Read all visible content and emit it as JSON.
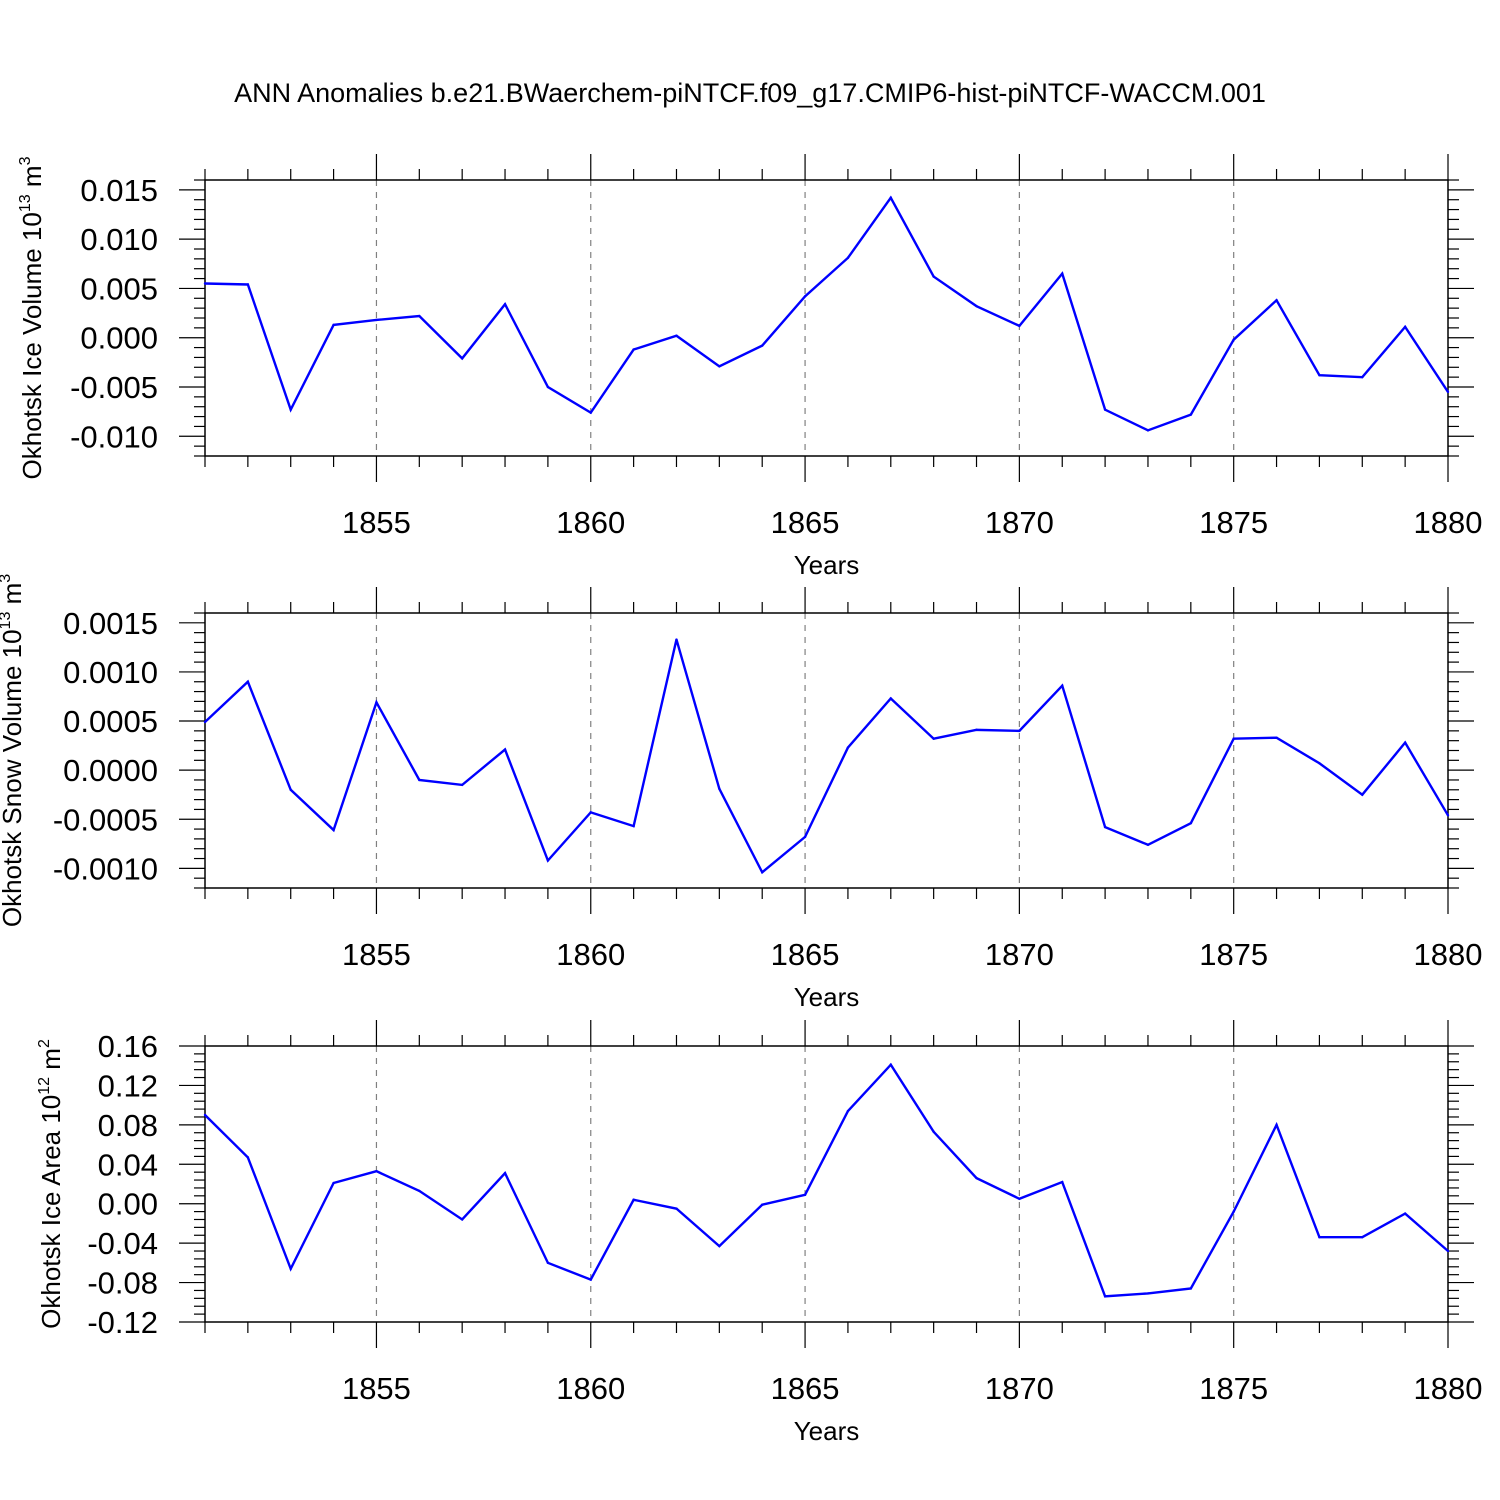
{
  "title": "ANN Anomalies b.e21.BWaerchem-piNTCF.f09_g17.CMIP6-hist-piNTCF-WACCM.001",
  "colors": {
    "line": "#0000ff",
    "axis": "#000000",
    "grid": "#808080"
  },
  "chart_data": [
    {
      "type": "line",
      "ylabel_main": "Okhotsk Ice Volume 10",
      "ylabel_exp": "13",
      "ylabel_unit": "m",
      "ylabel_unit_exp": "3",
      "xlabel": "Years",
      "xlim": [
        1851,
        1880
      ],
      "ylim": [
        -0.012,
        0.016
      ],
      "yticks": [
        -0.01,
        -0.005,
        0.0,
        0.005,
        0.01,
        0.015
      ],
      "ytick_labels": [
        "-0.010",
        "-0.005",
        "0.000",
        "0.005",
        "0.010",
        "0.015"
      ],
      "xticks": [
        1855,
        1860,
        1865,
        1870,
        1875,
        1880
      ],
      "xtick_labels": [
        "1855",
        "1860",
        "1865",
        "1870",
        "1875",
        "1880"
      ],
      "x": [
        1851,
        1852,
        1853,
        1854,
        1855,
        1856,
        1857,
        1858,
        1859,
        1860,
        1861,
        1862,
        1863,
        1864,
        1865,
        1866,
        1867,
        1868,
        1869,
        1870,
        1871,
        1872,
        1873,
        1874,
        1875,
        1876,
        1877,
        1878,
        1879,
        1880
      ],
      "y": [
        0.0055,
        0.0054,
        -0.0073,
        0.0013,
        0.0018,
        0.0022,
        -0.0021,
        0.0034,
        -0.005,
        -0.0076,
        -0.0012,
        0.0002,
        -0.0029,
        -0.0008,
        0.0042,
        0.0081,
        0.0142,
        0.0062,
        0.0032,
        0.0012,
        0.0065,
        -0.0073,
        -0.0094,
        -0.0078,
        -0.0002,
        0.0038,
        -0.0038,
        -0.004,
        0.0011,
        -0.0055
      ]
    },
    {
      "type": "line",
      "ylabel_main": "Okhotsk Snow Volume 10",
      "ylabel_exp": "13",
      "ylabel_unit": "m",
      "ylabel_unit_exp": "3",
      "xlabel": "Years",
      "xlim": [
        1851,
        1880
      ],
      "ylim": [
        -0.0012,
        0.0016
      ],
      "yticks": [
        -0.001,
        -0.0005,
        0.0,
        0.0005,
        0.001,
        0.0015
      ],
      "ytick_labels": [
        "-0.0010",
        "-0.0005",
        "0.0000",
        "0.0005",
        "0.0010",
        "0.0015"
      ],
      "xticks": [
        1855,
        1860,
        1865,
        1870,
        1875,
        1880
      ],
      "xtick_labels": [
        "1855",
        "1860",
        "1865",
        "1870",
        "1875",
        "1880"
      ],
      "x": [
        1851,
        1852,
        1853,
        1854,
        1855,
        1856,
        1857,
        1858,
        1859,
        1860,
        1861,
        1862,
        1863,
        1864,
        1865,
        1866,
        1867,
        1868,
        1869,
        1870,
        1871,
        1872,
        1873,
        1874,
        1875,
        1876,
        1877,
        1878,
        1879,
        1880
      ],
      "y": [
        0.00049,
        0.0009,
        -0.0002,
        -0.00061,
        0.00069,
        -0.0001,
        -0.00015,
        0.00021,
        -0.00092,
        -0.00043,
        -0.00057,
        0.00133,
        -0.00019,
        -0.00104,
        -0.00068,
        0.00023,
        0.00073,
        0.00032,
        0.00041,
        0.0004,
        0.00086,
        -0.00058,
        -0.00076,
        -0.00054,
        0.00032,
        0.00033,
        7e-05,
        -0.00025,
        0.00028,
        -0.00046
      ]
    },
    {
      "type": "line",
      "ylabel_main": "Okhotsk Ice Area 10",
      "ylabel_exp": "12",
      "ylabel_unit": "m",
      "ylabel_unit_exp": "2",
      "xlabel": "Years",
      "xlim": [
        1851,
        1880
      ],
      "ylim": [
        -0.12,
        0.16
      ],
      "yticks": [
        -0.12,
        -0.08,
        -0.04,
        0.0,
        0.04,
        0.08,
        0.12,
        0.16
      ],
      "ytick_labels": [
        "-0.12",
        "-0.08",
        "-0.04",
        "0.00",
        "0.04",
        "0.08",
        "0.12",
        "0.16"
      ],
      "xticks": [
        1855,
        1860,
        1865,
        1870,
        1875,
        1880
      ],
      "xtick_labels": [
        "1855",
        "1860",
        "1865",
        "1870",
        "1875",
        "1880"
      ],
      "x": [
        1851,
        1852,
        1853,
        1854,
        1855,
        1856,
        1857,
        1858,
        1859,
        1860,
        1861,
        1862,
        1863,
        1864,
        1865,
        1866,
        1867,
        1868,
        1869,
        1870,
        1871,
        1872,
        1873,
        1874,
        1875,
        1876,
        1877,
        1878,
        1879,
        1880
      ],
      "y": [
        0.09,
        0.047,
        -0.066,
        0.021,
        0.033,
        0.013,
        -0.016,
        0.031,
        -0.06,
        -0.077,
        0.004,
        -0.005,
        -0.043,
        -0.001,
        0.009,
        0.094,
        0.141,
        0.073,
        0.026,
        0.005,
        0.022,
        -0.094,
        -0.091,
        -0.086,
        -0.008,
        0.08,
        -0.034,
        -0.034,
        -0.01,
        -0.048
      ]
    }
  ]
}
